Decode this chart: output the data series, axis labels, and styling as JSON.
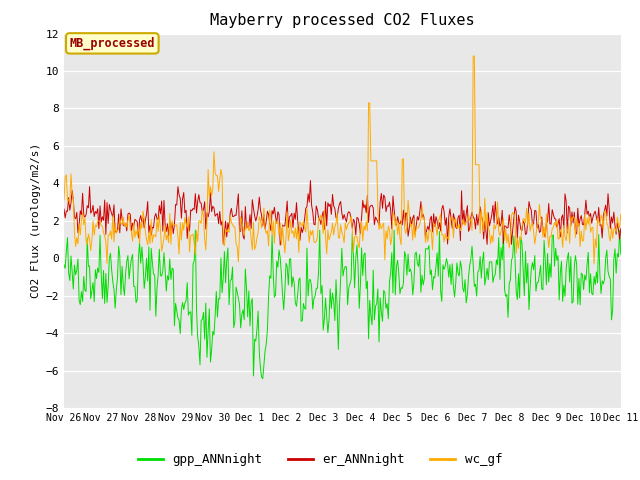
{
  "title": "Mayberry processed CO2 Fluxes",
  "ylabel": "CO2 Flux (urology/m2/s)",
  "ylim": [
    -8,
    12
  ],
  "yticks": [
    -8,
    -6,
    -4,
    -2,
    0,
    2,
    4,
    6,
    8,
    10,
    12
  ],
  "bg_color": "#e8e8e8",
  "line_green": "#00dd00",
  "line_red": "#cc0000",
  "line_orange": "#ffaa00",
  "legend_label": "MB_processed",
  "legend_text_color": "#990000",
  "legend_bg": "#ffffcc",
  "legend_edge": "#ccaa00",
  "series_labels": [
    "gpp_ANNnight",
    "er_ANNnight",
    "wc_gf"
  ],
  "n_points": 480,
  "seed": 42,
  "title_fontsize": 11,
  "tick_fontsize": 7,
  "ylabel_fontsize": 8
}
